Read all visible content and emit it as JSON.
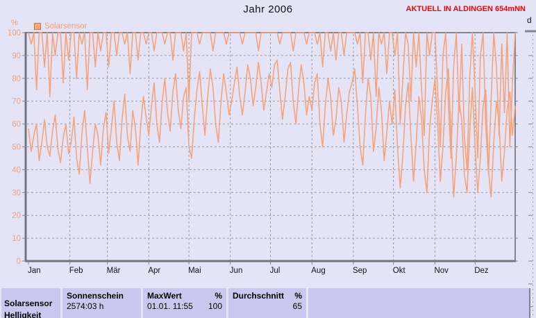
{
  "header": {
    "title": "Jahr 2006",
    "station_banner": "AKTUELL IN ALDINGEN 654mNN",
    "right_axis_label": "d"
  },
  "legend": {
    "label": "Solarsensor"
  },
  "colors": {
    "background": "#e4e4f6",
    "series_line": "#f5a37c",
    "legend_text": "#f0a078",
    "axis_tick_text": "#f0a078",
    "grid": "#9a9aa2",
    "axis": "#84848c",
    "table_cell": "#c9c9f0",
    "banner_red": "#ff0000",
    "title_text": "#101018"
  },
  "chart_data": {
    "type": "line",
    "title": "Jahr 2006",
    "xlabel": "",
    "ylabel": "%",
    "ylim": [
      0,
      100
    ],
    "yticks": [
      0,
      10,
      20,
      30,
      40,
      50,
      60,
      70,
      80,
      90,
      100
    ],
    "grid": true,
    "legend_position": "top-left",
    "categories": [
      "Jan",
      "Feb",
      "Mär",
      "Apr",
      "Mai",
      "Jun",
      "Jul",
      "Aug",
      "Sep",
      "Okt",
      "Nov",
      "Dez"
    ],
    "month_start_days": [
      0,
      31,
      59,
      90,
      120,
      151,
      181,
      212,
      243,
      273,
      304,
      334
    ],
    "days_per_point": 2,
    "days_total": 365,
    "series": [
      {
        "name": "Solarsensor",
        "role": "daily-max-trace",
        "values": [
          100,
          95,
          100,
          75,
          100,
          100,
          85,
          100,
          72,
          100,
          90,
          100,
          100,
          78,
          100,
          88,
          100,
          100,
          80,
          100,
          95,
          100,
          75,
          100,
          100,
          85,
          100,
          92,
          100,
          100,
          85,
          100,
          100,
          90,
          100,
          100,
          95,
          100,
          82,
          100,
          100,
          88,
          100,
          100,
          95,
          100,
          100,
          92,
          100,
          100,
          100,
          95,
          100,
          100,
          88,
          100,
          100,
          100,
          92,
          100,
          70,
          100,
          100,
          100,
          95,
          100,
          100,
          100,
          100,
          92,
          100,
          100,
          100,
          100,
          95,
          100,
          100,
          100,
          100,
          100,
          95,
          100,
          100,
          100,
          100,
          100,
          92,
          100,
          100,
          100,
          100,
          100,
          100,
          100,
          95,
          100,
          100,
          100,
          100,
          92,
          100,
          100,
          100,
          100,
          95,
          100,
          100,
          100,
          95,
          100,
          85,
          100,
          100,
          92,
          100,
          88,
          100,
          100,
          90,
          100,
          100,
          100,
          100,
          95,
          100,
          78,
          100,
          100,
          88,
          100,
          72,
          100,
          95,
          100,
          82,
          100,
          100,
          90,
          100,
          60,
          80,
          100,
          95,
          70,
          100,
          85,
          100,
          75,
          55,
          100,
          90,
          100,
          100,
          75,
          50,
          90,
          100,
          70,
          45,
          85,
          100,
          65,
          95,
          55,
          40,
          80,
          100,
          75,
          45,
          90,
          100,
          60,
          38,
          70,
          100,
          85,
          55,
          95,
          65,
          100,
          50,
          78,
          100
        ]
      },
      {
        "name": "Solarsensor",
        "role": "daily-mean-trace",
        "values": [
          58,
          48,
          55,
          60,
          44,
          52,
          62,
          50,
          46,
          57,
          64,
          49,
          43,
          54,
          60,
          47,
          52,
          63,
          45,
          38,
          56,
          66,
          50,
          34,
          48,
          60,
          55,
          42,
          58,
          65,
          47,
          58,
          70,
          52,
          44,
          62,
          73,
          55,
          48,
          66,
          58,
          42,
          60,
          72,
          63,
          55,
          68,
          78,
          60,
          52,
          70,
          80,
          65,
          57,
          74,
          82,
          66,
          58,
          72,
          76,
          50,
          45,
          62,
          75,
          83,
          68,
          55,
          72,
          84,
          76,
          60,
          52,
          70,
          82,
          74,
          64,
          70,
          78,
          85,
          72,
          64,
          74,
          86,
          80,
          68,
          76,
          87,
          78,
          66,
          74,
          82,
          76,
          86,
          88,
          74,
          62,
          72,
          84,
          87,
          70,
          60,
          75,
          86,
          78,
          64,
          72,
          66,
          78,
          82,
          60,
          50,
          68,
          80,
          72,
          55,
          62,
          76,
          70,
          52,
          64,
          74,
          78,
          84,
          68,
          50,
          42,
          64,
          80,
          72,
          48,
          58,
          76,
          66,
          44,
          56,
          70,
          60,
          75,
          50,
          32,
          46,
          68,
          78,
          55,
          35,
          52,
          72,
          62,
          40,
          30,
          58,
          70,
          80,
          60,
          35,
          50,
          74,
          84,
          55,
          28,
          46,
          70,
          62,
          38,
          30,
          56,
          76,
          50,
          30,
          45,
          68,
          75,
          40,
          28,
          52,
          70,
          60,
          35,
          48,
          66,
          74,
          55,
          68
        ]
      }
    ]
  },
  "table": {
    "sensor_label_line1": "Solarsensor",
    "sensor_label_line2": "Helligkeit",
    "cols": [
      {
        "header": "Sonnenschein",
        "header_unit": "",
        "value": "2574:03 h",
        "value_right": ""
      },
      {
        "header": "MaxWert",
        "header_unit": "%",
        "value": "01.01.  11:55",
        "value_right": "100"
      },
      {
        "header": "Durchschnitt",
        "header_unit": "%",
        "value": "",
        "value_right": "65"
      }
    ]
  }
}
